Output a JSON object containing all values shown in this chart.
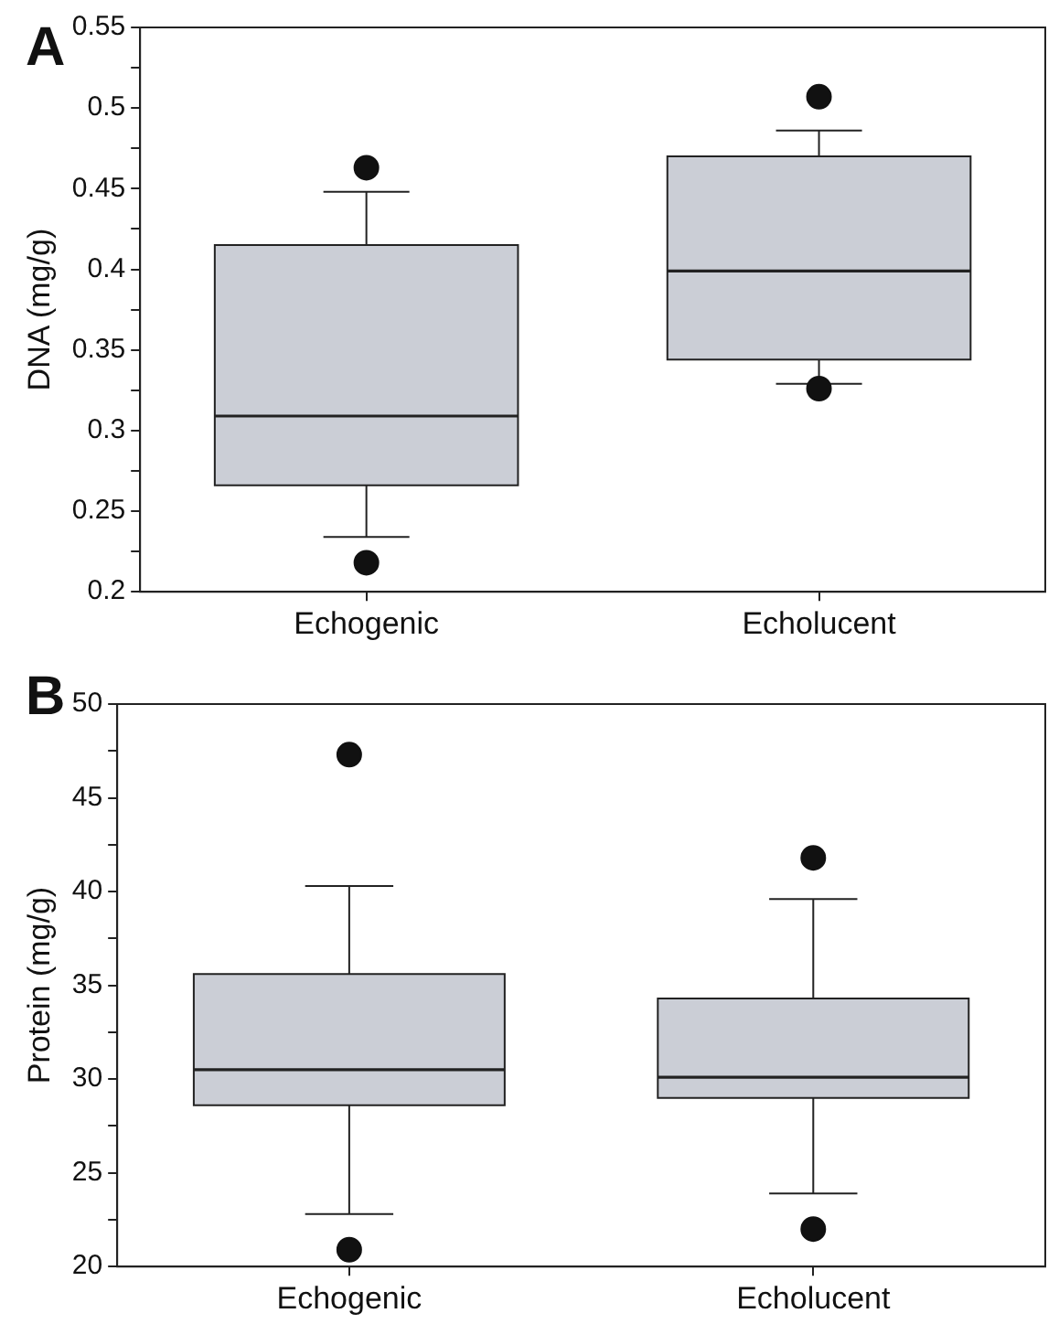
{
  "chart_data": [
    {
      "type": "box",
      "ylabel": "DNA (mg/g)",
      "annotations": [
        "A"
      ],
      "categories": [
        "Echogenic",
        "Echolucent"
      ],
      "color": "#cbced6",
      "ylim": [
        0.2,
        0.55
      ],
      "yticks": [
        0.2,
        {
          "value": 0.225,
          "label": null
        },
        0.25,
        {
          "value": 0.275,
          "label": null
        },
        0.3,
        {
          "value": 0.325,
          "label": null
        },
        0.35,
        {
          "value": 0.375,
          "label": null
        },
        0.4,
        {
          "value": 0.425,
          "label": null
        },
        0.45,
        {
          "value": 0.475,
          "label": null
        },
        0.5,
        {
          "value": 0.525,
          "label": null
        },
        0.55
      ],
      "boxes": [
        {
          "low": 0.234,
          "q1": 0.266,
          "median": 0.309,
          "q3": 0.415,
          "high": 0.448,
          "outliers": [
            0.463,
            0.218
          ]
        },
        {
          "low": 0.329,
          "q1": 0.344,
          "median": 0.399,
          "q3": 0.47,
          "high": 0.486,
          "outliers": [
            0.507,
            0.326
          ]
        }
      ]
    },
    {
      "type": "box",
      "ylabel": "Protein (mg/g)",
      "annotations": [
        "B"
      ],
      "categories": [
        "Echogenic",
        "Echolucent"
      ],
      "color": "#cbced6",
      "ylim": [
        20,
        50
      ],
      "yticks": [
        20,
        {
          "value": 22.5,
          "label": null
        },
        25,
        {
          "value": 27.5,
          "label": null
        },
        30,
        {
          "value": 32.5,
          "label": null
        },
        35,
        {
          "value": 37.5,
          "label": null
        },
        40,
        {
          "value": 42.5,
          "label": null
        },
        45,
        {
          "value": 47.5,
          "label": null
        },
        50
      ],
      "boxes": [
        {
          "low": 22.8,
          "q1": 28.6,
          "median": 30.5,
          "q3": 35.6,
          "high": 40.3,
          "outliers": [
            47.3,
            20.9
          ]
        },
        {
          "low": 23.9,
          "q1": 29.0,
          "median": 30.1,
          "q3": 34.3,
          "high": 39.6,
          "outliers": [
            41.8,
            22.0
          ]
        }
      ]
    }
  ]
}
